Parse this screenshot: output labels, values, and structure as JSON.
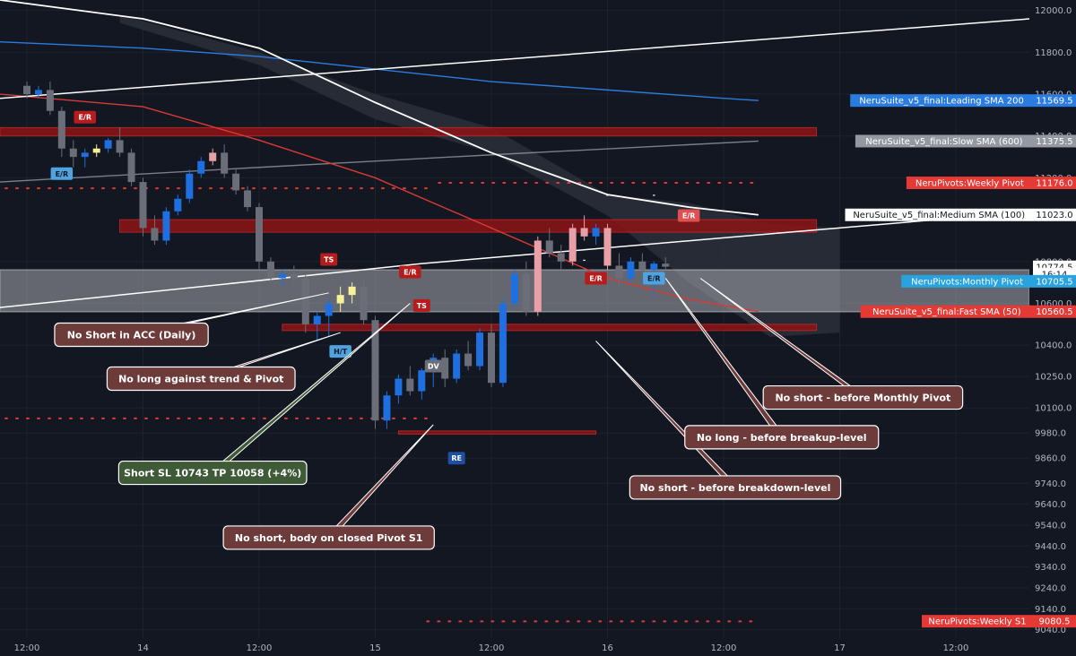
{
  "colors": {
    "background": "#131722",
    "grid": "#1e222d",
    "bull": "#1e6fe0",
    "bear": "#6b6e78",
    "bull_trend": "#1e6fe0",
    "bear_weak": "#e8a0a6",
    "yellow": "#f5f29a",
    "zone_red": "#8c1414",
    "zone_gray": "#a8aab0",
    "cloud": "#2a2e39",
    "sma_leading": "#2b7ce0",
    "sma_slow": "#9598a1",
    "sma_medium": "#ffffff",
    "sma_fast": "#d83a34",
    "pivot_dots": "#e53935",
    "anno_red_bg": "#6e3b3b",
    "anno_green_bg": "#3f5a37",
    "anno_border": "#ffffff"
  },
  "chart_data": {
    "type": "candlestick",
    "instrument_interval_hours": 2,
    "y_axis": {
      "ticks": [
        12000.0,
        11800.0,
        11600.0,
        11400.0,
        11200.0,
        10800.0,
        10600.0,
        10400.0,
        10250.0,
        10100.0,
        9980.0,
        9860.0,
        9740.0,
        9640.0,
        9540.0,
        9440.0,
        9340.0,
        9240.0,
        9140.0,
        9040.0
      ],
      "tick_labels": [
        "12000.0",
        "11800.0",
        "11600.0",
        "11400.0",
        "11200.0",
        "10800.0",
        "10600.0",
        "10400.0",
        "10250.0",
        "10100.0",
        "9980.0",
        "9860.0",
        "9740.0",
        "9640.0",
        "9540.0",
        "9440.0",
        "9340.0",
        "9240.0",
        "9140.0",
        "9040.0"
      ],
      "range": [
        9000,
        12050
      ]
    },
    "x_axis": {
      "tick_labels": [
        "12:00",
        "14",
        "12:00",
        "15",
        "12:00",
        "16",
        "12:00",
        "17",
        "12:00"
      ],
      "bar_index": [
        0,
        10,
        20,
        30,
        40,
        50,
        60,
        70,
        80
      ]
    },
    "candles": [
      [
        11640,
        11660,
        11580,
        11600
      ],
      [
        11600,
        11640,
        11580,
        11620
      ],
      [
        11620,
        11660,
        11500,
        11520
      ],
      [
        11520,
        11540,
        11300,
        11340
      ],
      [
        11340,
        11380,
        11250,
        11300
      ],
      [
        11300,
        11340,
        11250,
        11320
      ],
      [
        11320,
        11360,
        11300,
        11340
      ],
      [
        11340,
        11390,
        11320,
        11380
      ],
      [
        11380,
        11440,
        11300,
        11320
      ],
      [
        11320,
        11340,
        11160,
        11180
      ],
      [
        11180,
        11200,
        10920,
        10960
      ],
      [
        10960,
        11020,
        10880,
        10900
      ],
      [
        10900,
        11060,
        10880,
        11040
      ],
      [
        11040,
        11120,
        11020,
        11100
      ],
      [
        11100,
        11240,
        11080,
        11220
      ],
      [
        11220,
        11300,
        11200,
        11280
      ],
      [
        11280,
        11340,
        11260,
        11320
      ],
      [
        11320,
        11360,
        11200,
        11220
      ],
      [
        11220,
        11240,
        11120,
        11140
      ],
      [
        11140,
        11160,
        11040,
        11060
      ],
      [
        11060,
        11080,
        10760,
        10800
      ],
      [
        10800,
        10820,
        10700,
        10720
      ],
      [
        10720,
        10760,
        10680,
        10740
      ],
      [
        10740,
        10780,
        10700,
        10720
      ],
      [
        10720,
        10740,
        10460,
        10500
      ],
      [
        10500,
        10560,
        10420,
        10540
      ],
      [
        10540,
        10620,
        10440,
        10600
      ],
      [
        10600,
        10680,
        10560,
        10640
      ],
      [
        10640,
        10700,
        10600,
        10680
      ],
      [
        10680,
        10720,
        10500,
        10520
      ],
      [
        10520,
        10540,
        10000,
        10040
      ],
      [
        10040,
        10180,
        10000,
        10160
      ],
      [
        10160,
        10260,
        10120,
        10240
      ],
      [
        10240,
        10300,
        10160,
        10180
      ],
      [
        10180,
        10290,
        10140,
        10280
      ],
      [
        10280,
        10360,
        10200,
        10340
      ],
      [
        10340,
        10380,
        10200,
        10240
      ],
      [
        10240,
        10380,
        10220,
        10360
      ],
      [
        10360,
        10420,
        10280,
        10300
      ],
      [
        10300,
        10480,
        10280,
        10460
      ],
      [
        10460,
        10500,
        10200,
        10220
      ],
      [
        10220,
        10620,
        10200,
        10600
      ],
      [
        10600,
        10760,
        10580,
        10740
      ],
      [
        10740,
        10800,
        10540,
        10560
      ],
      [
        10560,
        10920,
        10540,
        10900
      ],
      [
        10900,
        10960,
        10820,
        10840
      ],
      [
        10840,
        10880,
        10760,
        10800
      ],
      [
        10800,
        10980,
        10780,
        10960
      ],
      [
        10960,
        11020,
        10900,
        10920
      ],
      [
        10920,
        10980,
        10880,
        10960
      ],
      [
        10960,
        10980,
        10760,
        10780
      ],
      [
        10780,
        10840,
        10680,
        10720
      ],
      [
        10720,
        10820,
        10700,
        10800
      ],
      [
        10800,
        10840,
        10740,
        10760
      ],
      [
        10760,
        10800,
        10640,
        10790
      ],
      [
        10790,
        10820,
        10760,
        10775
      ]
    ],
    "highlight_candles": {
      "yellow": [
        6,
        27,
        28
      ],
      "pink": [
        16,
        44,
        47,
        48,
        50
      ]
    },
    "series": [
      {
        "name": "NeruSuite_v5_final:Leading SMA 200",
        "color": "#2b7ce0",
        "points": [
          [
            0,
            11850
          ],
          [
            10,
            11820
          ],
          [
            20,
            11780
          ],
          [
            30,
            11720
          ],
          [
            40,
            11660
          ],
          [
            50,
            11620
          ],
          [
            60,
            11580
          ],
          [
            63,
            11569.5
          ]
        ]
      },
      {
        "name": "NeruSuite_v5_final:Slow SMA (600)",
        "color": "#9598a1",
        "points": [
          [
            0,
            11180
          ],
          [
            20,
            11250
          ],
          [
            40,
            11310
          ],
          [
            63,
            11375.5
          ]
        ]
      },
      {
        "name": "NeruSuite_v5_final:Medium SMA (100)",
        "color": "#ffffff",
        "points": [
          [
            0,
            12050
          ],
          [
            10,
            11960
          ],
          [
            20,
            11820
          ],
          [
            30,
            11560
          ],
          [
            40,
            11320
          ],
          [
            50,
            11120
          ],
          [
            57,
            11060
          ],
          [
            63,
            11023
          ]
        ]
      },
      {
        "name": "NeruSuite_v5_final:Fast SMA (50)",
        "color": "#d83a34",
        "points": [
          [
            0,
            11600
          ],
          [
            10,
            11540
          ],
          [
            20,
            11380
          ],
          [
            30,
            11200
          ],
          [
            40,
            10960
          ],
          [
            50,
            10720
          ],
          [
            57,
            10620
          ],
          [
            63,
            10560.5
          ]
        ]
      }
    ],
    "trendlines": [
      {
        "points": [
          [
            0,
            11580
          ],
          [
            91,
            11980
          ]
        ]
      },
      {
        "points": [
          [
            0,
            10580
          ],
          [
            34,
            10790
          ],
          [
            91,
            11060
          ]
        ]
      }
    ],
    "cloud": {
      "upper": [
        [
          8,
          11980
        ],
        [
          20,
          11800
        ],
        [
          30,
          11600
        ],
        [
          40,
          11440
        ],
        [
          50,
          11120
        ],
        [
          57,
          11080
        ],
        [
          64,
          10980
        ],
        [
          70,
          10960
        ]
      ],
      "lower": [
        [
          8,
          11940
        ],
        [
          20,
          11740
        ],
        [
          30,
          11480
        ],
        [
          40,
          11320
        ],
        [
          50,
          11020
        ],
        [
          57,
          10700
        ],
        [
          64,
          10440
        ],
        [
          70,
          10460
        ]
      ]
    },
    "zones": [
      {
        "color": "red",
        "x": [
          0,
          68
        ],
        "y": [
          11440,
          11400
        ]
      },
      {
        "color": "red",
        "x": [
          8,
          68
        ],
        "y": [
          11000,
          10940
        ]
      },
      {
        "color": "gray",
        "x": [
          0,
          91
        ],
        "y": [
          10760,
          10560
        ]
      },
      {
        "color": "red",
        "x": [
          22,
          68
        ],
        "y": [
          10500,
          10470
        ]
      },
      {
        "color": "red",
        "x": [
          32,
          49
        ],
        "y": [
          9990,
          9975
        ]
      }
    ],
    "pivot_dot_rows": [
      {
        "level": 11176,
        "x": [
          35,
          63
        ]
      },
      {
        "level": 11150,
        "x": [
          0,
          35
        ]
      },
      {
        "level": 10050,
        "x": [
          0,
          35
        ]
      },
      {
        "level": 9080,
        "x": [
          34,
          63
        ]
      }
    ],
    "markers": [
      {
        "bar": 5,
        "price": 11490,
        "text": "E/R",
        "bg": "#b71c1c",
        "fg": "#ffffff"
      },
      {
        "bar": 3,
        "price": 11220,
        "text": "E/R",
        "bg": "#4fa3e0",
        "fg": "#131722"
      },
      {
        "bar": 26,
        "price": 10810,
        "text": "TS",
        "bg": "#b71c1c",
        "fg": "#ffffff"
      },
      {
        "bar": 33,
        "price": 10750,
        "text": "E/R",
        "bg": "#b71c1c",
        "fg": "#ffffff"
      },
      {
        "bar": 34,
        "price": 10590,
        "text": "TS",
        "bg": "#b71c1c",
        "fg": "#ffffff"
      },
      {
        "bar": 27,
        "price": 10370,
        "text": "H/T",
        "bg": "#4fa3e0",
        "fg": "#131722"
      },
      {
        "bar": 35,
        "price": 10300,
        "text": "DV",
        "bg": "#6b6e78",
        "fg": "#ffffff"
      },
      {
        "bar": 37,
        "price": 9860,
        "text": "RE",
        "bg": "#1e4fa0",
        "fg": "#ffffff"
      },
      {
        "bar": 49,
        "price": 10720,
        "text": "E/R",
        "bg": "#b71c1c",
        "fg": "#ffffff"
      },
      {
        "bar": 54,
        "price": 10720,
        "text": "E/R",
        "bg": "#4fa3e0",
        "fg": "#131722"
      },
      {
        "bar": 57,
        "price": 11020,
        "text": "E/R",
        "bg": "#e05050",
        "fg": "#ffffff"
      },
      {
        "bar": 50,
        "price": 11120,
        "text": "-",
        "bg": "none",
        "fg": "#ffffff"
      },
      {
        "bar": 54,
        "price": 11120,
        "text": "-",
        "bg": "none",
        "fg": "#ffffff"
      },
      {
        "bar": 48,
        "price": 10810,
        "text": "-",
        "bg": "none",
        "fg": "#ffffff"
      }
    ],
    "annotations": [
      {
        "text": "No Short in ACC (Daily)",
        "kind": "red",
        "box_bar": 9,
        "box_price": 10450,
        "target_bar": 26,
        "target_price": 10650
      },
      {
        "text": "No long against trend & Pivot",
        "kind": "red",
        "box_bar": 15,
        "box_price": 10240,
        "target_bar": 27,
        "target_price": 10460
      },
      {
        "text": "Short SL 10743 TP 10058 (+4%)",
        "kind": "green",
        "box_bar": 16,
        "box_price": 9790,
        "target_bar": 33,
        "target_price": 10600
      },
      {
        "text": "No short, body on closed Pivot S1",
        "kind": "red",
        "box_bar": 26,
        "box_price": 9480,
        "target_bar": 35,
        "target_price": 10020
      },
      {
        "text": "No short - before breakdown-level",
        "kind": "red",
        "box_bar": 61,
        "box_price": 9720,
        "target_bar": 49,
        "target_price": 10420
      },
      {
        "text": "No long - before breakup-level",
        "kind": "red",
        "box_bar": 65,
        "box_price": 9960,
        "target_bar": 55,
        "target_price": 10720
      },
      {
        "text": "No short - before Monthly Pivot",
        "kind": "red",
        "box_bar": 72,
        "box_price": 10150,
        "target_bar": 58,
        "target_price": 10720
      }
    ],
    "price_labels": [
      {
        "text": "NeruSuite_v5_final:Leading SMA 200",
        "value": "11569.5",
        "price": 11569.5,
        "bg": "#2b7ce0",
        "fg": "#ffffff",
        "style": "split"
      },
      {
        "text": "NeruSuite_v5_final:Slow SMA (600)",
        "value": "11375.5",
        "price": 11375.5,
        "bg": "#9598a1",
        "fg": "#ffffff",
        "style": "split"
      },
      {
        "text": "NeruPivots:Weekly Pivot",
        "value": "11176.0",
        "price": 11176.0,
        "bg": "#e53935",
        "fg": "#ffffff",
        "style": "split"
      },
      {
        "text": "NeruSuite_v5_final:Medium SMA (100)",
        "value": "11023.0",
        "price": 11023.0,
        "bg": "#ffffff",
        "fg": "#131722",
        "style": "split"
      },
      {
        "text": "",
        "value": "10774.5",
        "price": 10774.5,
        "bg": "#ffffff",
        "fg": "#131722",
        "style": "axis"
      },
      {
        "text": "",
        "value": "16:14",
        "price": 10740,
        "bg": "#ffffff",
        "fg": "#131722",
        "style": "axis"
      },
      {
        "text": "NeruPivots:Monthly Pivot",
        "value": "10705.5",
        "price": 10705.5,
        "bg": "#29a3e0",
        "fg": "#ffffff",
        "style": "split"
      },
      {
        "text": "NeruSuite_v5_final:Fast SMA (50)",
        "value": "10560.5",
        "price": 10560.5,
        "bg": "#e53935",
        "fg": "#ffffff",
        "style": "split"
      },
      {
        "text": "NeruPivots:Weekly S1",
        "value": "9080.5",
        "price": 9080.5,
        "bg": "#e53935",
        "fg": "#ffffff",
        "style": "split"
      }
    ]
  }
}
